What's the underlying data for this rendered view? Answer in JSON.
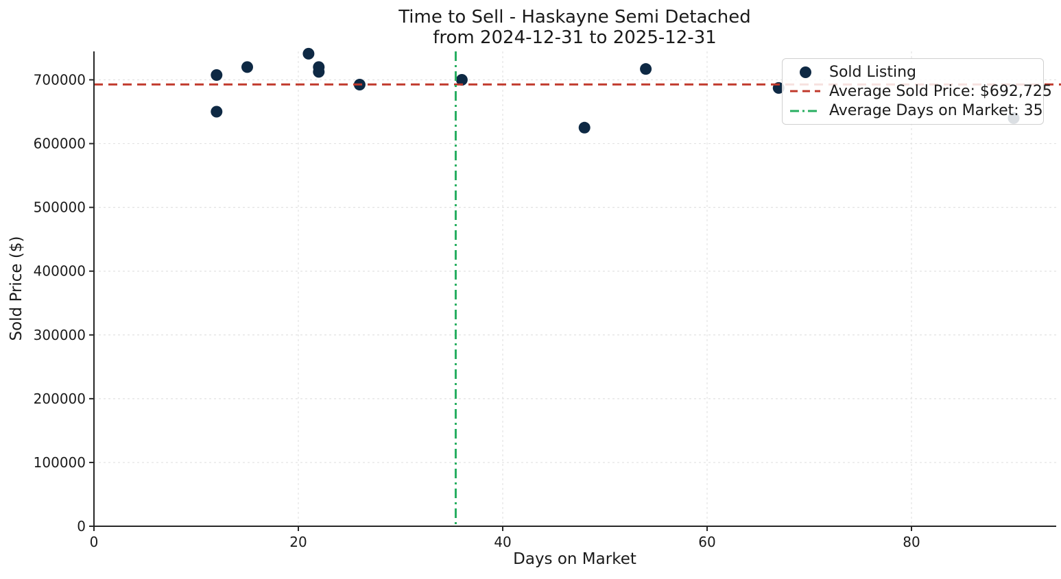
{
  "title": {
    "line1": "Time to Sell - Haskayne Semi Detached",
    "line2": "from 2024-12-31 to 2025-12-31"
  },
  "chart_data": {
    "type": "scatter",
    "title": "Time to Sell - Haskayne Semi Detached from 2024-12-31 to 2025-12-31",
    "xlabel": "Days on Market",
    "ylabel": "Sold Price ($)",
    "xticks": [
      0,
      20,
      40,
      60,
      80
    ],
    "yticks": [
      0,
      100000,
      200000,
      300000,
      400000,
      500000,
      600000,
      700000
    ],
    "xlim": [
      0,
      94
    ],
    "ylim": [
      0,
      745000
    ],
    "grid": true,
    "legend_position": "upper right",
    "series": [
      {
        "name": "Sold Listing",
        "color": "#0e2944",
        "points": [
          {
            "x": 12,
            "y": 707500
          },
          {
            "x": 12,
            "y": 650000
          },
          {
            "x": 15,
            "y": 720000
          },
          {
            "x": 21,
            "y": 741000
          },
          {
            "x": 22,
            "y": 720000
          },
          {
            "x": 22,
            "y": 712500
          },
          {
            "x": 26,
            "y": 692500
          },
          {
            "x": 36,
            "y": 700000
          },
          {
            "x": 48,
            "y": 625000
          },
          {
            "x": 54,
            "y": 717000
          },
          {
            "x": 67,
            "y": 687200
          },
          {
            "x": 90,
            "y": 640000
          }
        ]
      }
    ],
    "reference_lines": {
      "average_sold_price": {
        "label": "Average Sold Price: $692,725",
        "value": 692725,
        "orientation": "horizontal",
        "style": "dashed",
        "color": "#c0392b"
      },
      "average_days_on_market": {
        "label": "Average Days on Market: 35",
        "value": 35.4,
        "orientation": "vertical",
        "style": "dashdot",
        "color": "#27ae60"
      }
    }
  },
  "legend": {
    "items": [
      {
        "label": "Sold Listing",
        "marker": "dot",
        "color": "#0e2944"
      },
      {
        "label": "Average Sold Price: $692,725",
        "marker": "dashed-line",
        "color": "#c0392b"
      },
      {
        "label": "Average Days on Market: 35",
        "marker": "dashdot-line",
        "color": "#27ae60"
      }
    ]
  },
  "colors": {
    "point": "#0e2944",
    "avg_price_line": "#c0392b",
    "avg_days_line": "#27ae60",
    "grid": "#e2e2e2",
    "spine": "#262626",
    "text": "#1a1a1a"
  }
}
